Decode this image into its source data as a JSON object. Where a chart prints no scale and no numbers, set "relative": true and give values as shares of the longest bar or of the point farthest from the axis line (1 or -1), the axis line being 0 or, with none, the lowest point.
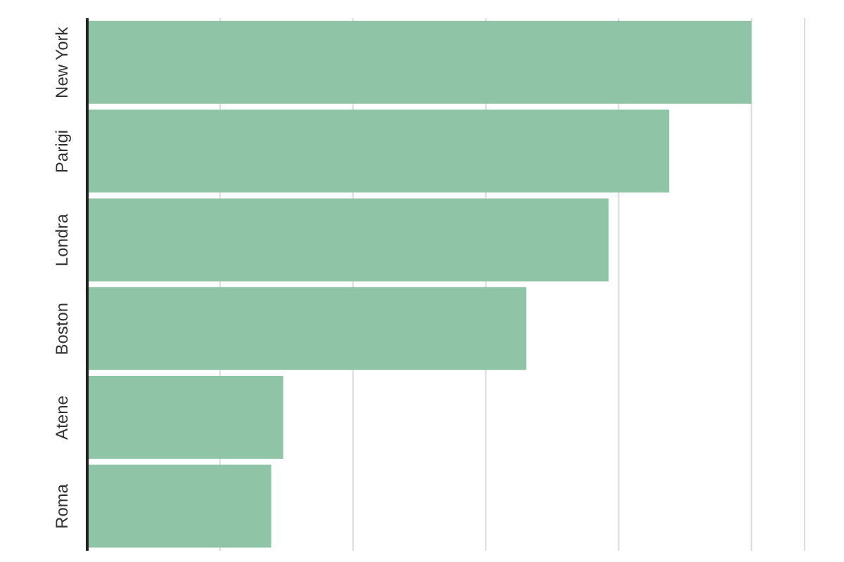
{
  "chart_data": {
    "type": "bar",
    "orientation": "horizontal",
    "relative": true,
    "categories": [
      "New York",
      "Parigi",
      "Londra",
      "Boston",
      "Atene",
      "Roma"
    ],
    "values": [
      1,
      0.876,
      0.785,
      0.661,
      0.295,
      0.277
    ],
    "color": "#8fc4a7",
    "grid": "x"
  }
}
